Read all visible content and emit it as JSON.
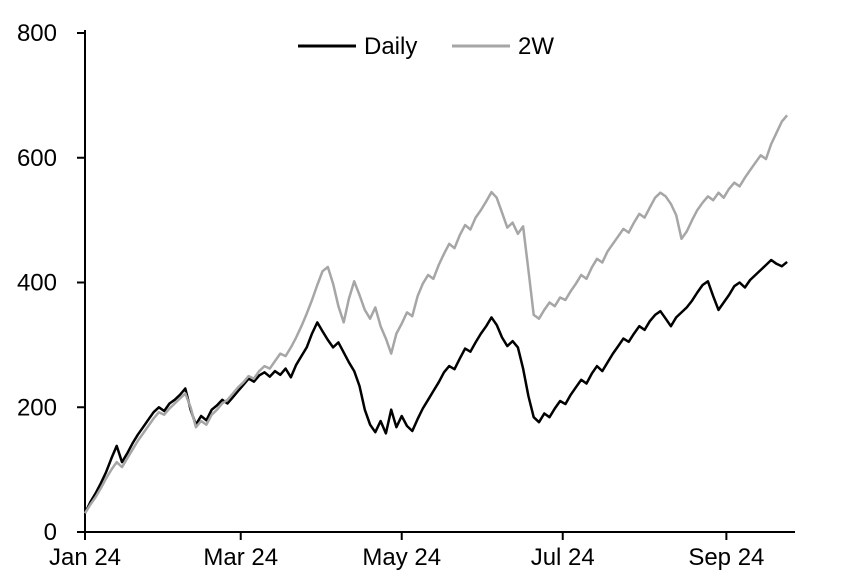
{
  "chart_data": {
    "type": "line",
    "title": "",
    "xlabel": "",
    "ylabel": "",
    "grid": false,
    "legend_position": "top-center",
    "x_axis": {
      "range": [
        0,
        269
      ],
      "tick_days": [
        0,
        59,
        120,
        181,
        243
      ],
      "tick_labels": [
        "Jan 24",
        "Mar 24",
        "May 24",
        "Jul 24",
        "Sep 24"
      ]
    },
    "y_axis": {
      "range": [
        0,
        800
      ],
      "ticks": [
        0,
        200,
        400,
        600,
        800
      ]
    },
    "x_start_day": 0,
    "x_step_days": 2,
    "series": [
      {
        "name": "Daily",
        "color": "#000000",
        "values": [
          30,
          48,
          62,
          78,
          96,
          118,
          138,
          112,
          126,
          142,
          156,
          168,
          180,
          192,
          200,
          194,
          206,
          212,
          220,
          230,
          196,
          172,
          186,
          179,
          196,
          203,
          212,
          206,
          216,
          226,
          236,
          246,
          241,
          251,
          256,
          249,
          258,
          252,
          262,
          248,
          268,
          282,
          296,
          318,
          336,
          322,
          308,
          296,
          304,
          288,
          272,
          258,
          234,
          196,
          172,
          160,
          178,
          158,
          196,
          168,
          186,
          170,
          162,
          181,
          198,
          212,
          226,
          240,
          256,
          266,
          261,
          278,
          294,
          289,
          304,
          318,
          330,
          344,
          332,
          312,
          298,
          306,
          296,
          262,
          218,
          184,
          176,
          190,
          184,
          198,
          210,
          205,
          220,
          232,
          244,
          238,
          254,
          266,
          258,
          272,
          286,
          298,
          310,
          305,
          318,
          330,
          324,
          338,
          348,
          354,
          342,
          330,
          344,
          352,
          360,
          371,
          384,
          396,
          402,
          378,
          356,
          368,
          380,
          394,
          400,
          392,
          404,
          412,
          420,
          428,
          436,
          430,
          426,
          433
        ]
      },
      {
        "name": "2W",
        "color": "#a6a6a6",
        "values": [
          30,
          44,
          56,
          70,
          86,
          100,
          112,
          104,
          118,
          132,
          146,
          158,
          170,
          182,
          192,
          188,
          198,
          206,
          214,
          222,
          200,
          168,
          178,
          172,
          188,
          196,
          206,
          212,
          222,
          232,
          240,
          250,
          246,
          258,
          266,
          262,
          274,
          286,
          282,
          296,
          312,
          330,
          350,
          372,
          396,
          418,
          425,
          398,
          362,
          336,
          374,
          402,
          380,
          356,
          342,
          360,
          330,
          310,
          286,
          318,
          334,
          352,
          346,
          378,
          398,
          412,
          406,
          428,
          446,
          462,
          455,
          476,
          492,
          485,
          504,
          516,
          530,
          545,
          536,
          512,
          488,
          496,
          478,
          490,
          420,
          348,
          342,
          356,
          368,
          362,
          376,
          372,
          386,
          398,
          412,
          406,
          424,
          438,
          432,
          450,
          462,
          474,
          486,
          480,
          496,
          510,
          504,
          520,
          536,
          544,
          538,
          526,
          508,
          470,
          482,
          500,
          516,
          528,
          538,
          532,
          544,
          536,
          550,
          560,
          554,
          568,
          580,
          592,
          604,
          598,
          622,
          640,
          658,
          668
        ]
      }
    ]
  },
  "colors": {
    "background": "#ffffff",
    "axis": "#000000"
  }
}
